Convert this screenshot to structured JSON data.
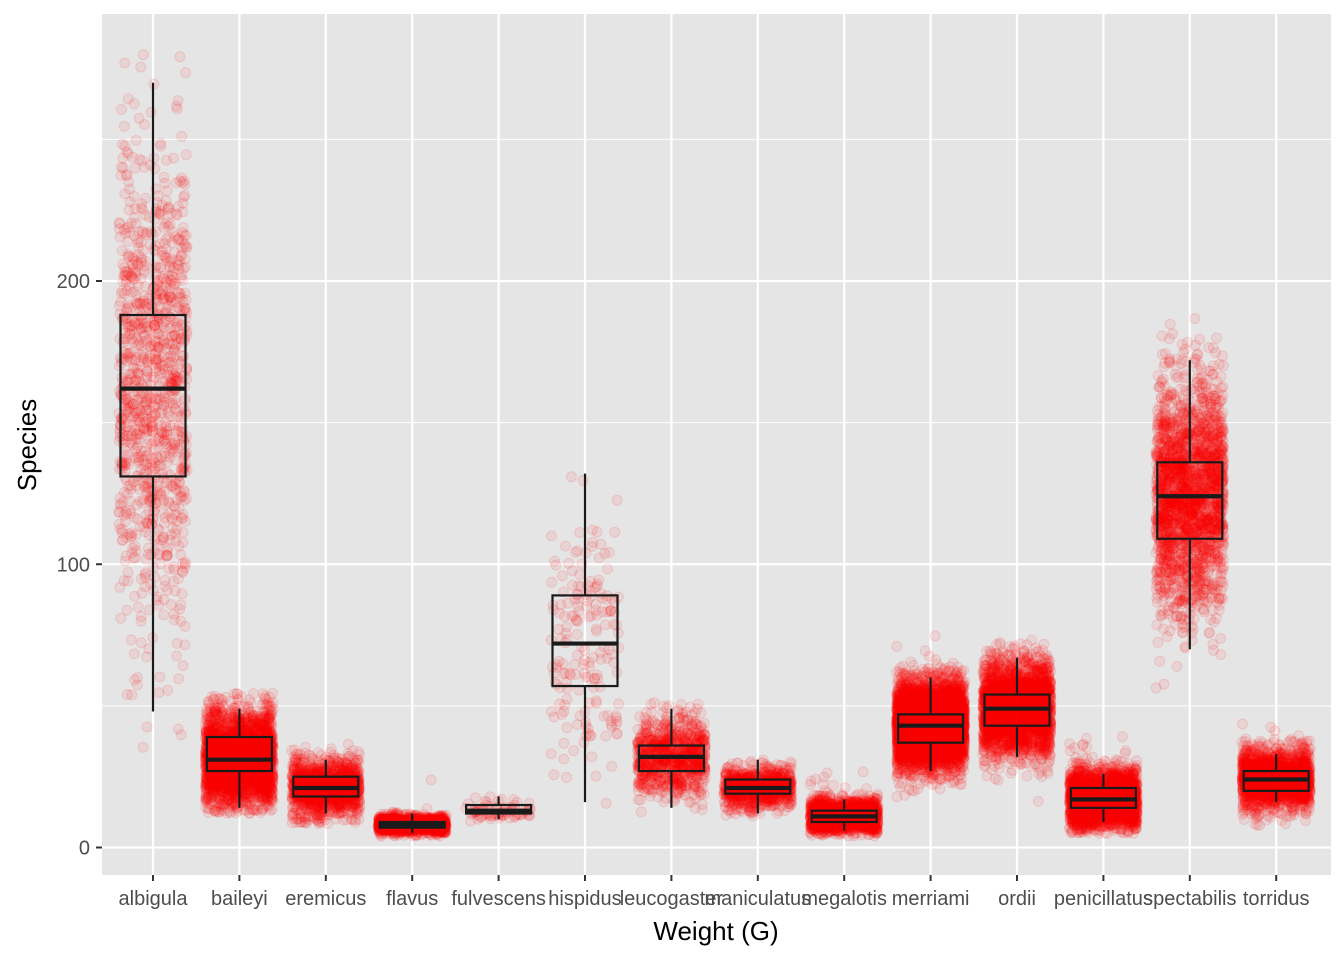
{
  "chart_data": {
    "type": "boxplot",
    "title": "",
    "xlabel": "Weight (G)",
    "ylabel": "Species",
    "ylim": [
      -10,
      295
    ],
    "y_ticks": [
      0,
      100,
      200
    ],
    "y_minor_ticks": [
      50,
      150,
      250
    ],
    "grid": true,
    "legend": "none",
    "colors": {
      "panel": "#e5e5e5",
      "grid": "#ffffff",
      "points": "#ff0000",
      "box_stroke": "#1a1a1a",
      "tick_text": "#4d4d4d"
    },
    "categories": [
      "albigula",
      "baileyi",
      "eremicus",
      "flavus",
      "fulvescens",
      "hispidus",
      "leucogaster",
      "maniculatus",
      "megalotis",
      "merriami",
      "ordii",
      "penicillatus",
      "spectabilis",
      "torridus"
    ],
    "boxes": [
      {
        "category": "albigula",
        "whisker_low": 48,
        "q1": 131,
        "median": 162,
        "q3": 188,
        "whisker_high": 270,
        "n_points": 1100,
        "jitter_min": 28,
        "jitter_max": 280
      },
      {
        "category": "baileyi",
        "whisker_low": 14,
        "q1": 27,
        "median": 31,
        "q3": 39,
        "whisker_high": 49,
        "n_points": 2800,
        "jitter_min": 12,
        "jitter_max": 55
      },
      {
        "category": "eremicus",
        "whisker_low": 12,
        "q1": 18,
        "median": 21,
        "q3": 25,
        "whisker_high": 31,
        "n_points": 1300,
        "jitter_min": 8,
        "jitter_max": 40
      },
      {
        "category": "flavus",
        "whisker_low": 5,
        "q1": 7,
        "median": 8,
        "q3": 9,
        "whisker_high": 12,
        "n_points": 1500,
        "jitter_min": 4,
        "jitter_max": 25
      },
      {
        "category": "fulvescens",
        "whisker_low": 10,
        "q1": 12,
        "median": 13,
        "q3": 15,
        "whisker_high": 18,
        "n_points": 75,
        "jitter_min": 9,
        "jitter_max": 20
      },
      {
        "category": "hispidus",
        "whisker_low": 16,
        "q1": 57,
        "median": 72,
        "q3": 89,
        "whisker_high": 132,
        "n_points": 180,
        "jitter_min": 15,
        "jitter_max": 140
      },
      {
        "category": "leucogaster",
        "whisker_low": 14,
        "q1": 27,
        "median": 32,
        "q3": 36,
        "whisker_high": 49,
        "n_points": 900,
        "jitter_min": 10,
        "jitter_max": 56
      },
      {
        "category": "maniculatus",
        "whisker_low": 12,
        "q1": 19,
        "median": 21,
        "q3": 24,
        "whisker_high": 31,
        "n_points": 900,
        "jitter_min": 8,
        "jitter_max": 50
      },
      {
        "category": "megalotis",
        "whisker_low": 6,
        "q1": 9,
        "median": 11,
        "q3": 13,
        "whisker_high": 17,
        "n_points": 1800,
        "jitter_min": 4,
        "jitter_max": 28
      },
      {
        "category": "merriami",
        "whisker_low": 27,
        "q1": 37,
        "median": 43,
        "q3": 47,
        "whisker_high": 60,
        "n_points": 5000,
        "jitter_min": 10,
        "jitter_max": 76
      },
      {
        "category": "ordii",
        "whisker_low": 32,
        "q1": 43,
        "median": 49,
        "q3": 54,
        "whisker_high": 67,
        "n_points": 2800,
        "jitter_min": 16,
        "jitter_max": 75
      },
      {
        "category": "penicillatus",
        "whisker_low": 9,
        "q1": 14,
        "median": 17,
        "q3": 21,
        "whisker_high": 26,
        "n_points": 2700,
        "jitter_min": 5,
        "jitter_max": 41
      },
      {
        "category": "spectabilis",
        "whisker_low": 70,
        "q1": 109,
        "median": 124,
        "q3": 136,
        "whisker_high": 172,
        "n_points": 2300,
        "jitter_min": 12,
        "jitter_max": 190
      },
      {
        "category": "torridus",
        "whisker_low": 16,
        "q1": 20,
        "median": 24,
        "q3": 27,
        "whisker_high": 33,
        "n_points": 2100,
        "jitter_min": 5,
        "jitter_max": 47
      }
    ]
  }
}
